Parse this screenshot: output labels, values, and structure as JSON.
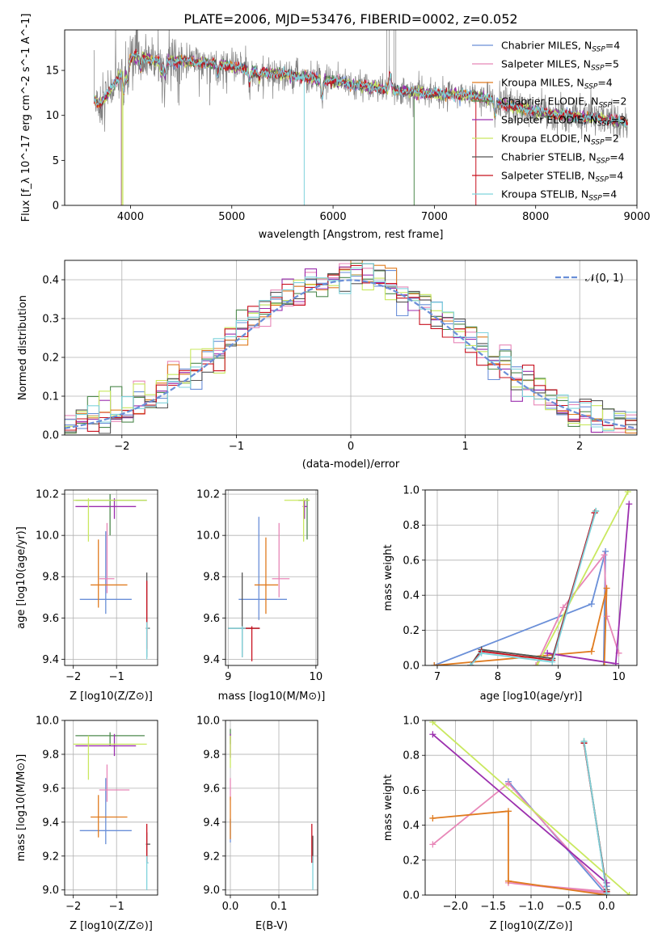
{
  "figure": {
    "title": "PLATE=2006, MJD=53476, FIBERID=0002, z=0.052"
  },
  "series": [
    {
      "name": "Chabrier MILES",
      "nssp": "4",
      "color": "#6a8fd8"
    },
    {
      "name": "Salpeter MILES",
      "nssp": "5",
      "color": "#e887b8"
    },
    {
      "name": "Kroupa MILES",
      "nssp": "4",
      "color": "#e07b1f"
    },
    {
      "name": "Chabrier ELODIE",
      "nssp": "2",
      "color": "#4f8a4f"
    },
    {
      "name": "Salpeter ELODIE",
      "nssp": "3",
      "color": "#9b2fae"
    },
    {
      "name": "Kroupa ELODIE",
      "nssp": "2",
      "color": "#c9e85f"
    },
    {
      "name": "Chabrier STELIB",
      "nssp": "4",
      "color": "#555555"
    },
    {
      "name": "Salpeter STELIB",
      "nssp": "4",
      "color": "#c8101e"
    },
    {
      "name": "Kroupa STELIB",
      "nssp": "4",
      "color": "#7fd3dc"
    }
  ],
  "chart_data": [
    {
      "type": "line",
      "id": "spectrum",
      "title": "PLATE=2006, MJD=53476, FIBERID=0002, z=0.052",
      "xlabel": "wavelength [Angstrom, rest frame]",
      "ylabel": "Flux [f_λ 10^-17 erg cm^-2 s^-1 A^-1]",
      "xlim": [
        3350,
        9000
      ],
      "ylim": [
        0,
        19.5
      ],
      "xticks": [
        4000,
        5000,
        6000,
        7000,
        8000,
        9000
      ],
      "yticks": [
        0,
        5,
        10,
        15
      ],
      "data_color": "#808080",
      "continuum": [
        [
          3640,
          11.8
        ],
        [
          3700,
          11.2
        ],
        [
          3800,
          12.8
        ],
        [
          3900,
          14.5
        ],
        [
          4000,
          16.3
        ],
        [
          4100,
          16.8
        ],
        [
          4200,
          16.2
        ],
        [
          4300,
          16.0
        ],
        [
          4400,
          16.0
        ],
        [
          4500,
          16.0
        ],
        [
          4700,
          15.9
        ],
        [
          5000,
          15.5
        ],
        [
          5200,
          14.9
        ],
        [
          5500,
          14.6
        ],
        [
          5800,
          14.1
        ],
        [
          6000,
          13.8
        ],
        [
          6300,
          13.2
        ],
        [
          6600,
          12.8
        ],
        [
          6800,
          12.6
        ],
        [
          7000,
          12.4
        ],
        [
          7200,
          12.3
        ],
        [
          7400,
          12.2
        ],
        [
          7600,
          11.6
        ],
        [
          7800,
          10.9
        ],
        [
          8000,
          10.5
        ],
        [
          8200,
          10.1
        ],
        [
          8400,
          9.9
        ],
        [
          8600,
          9.7
        ],
        [
          8800,
          9.4
        ],
        [
          8910,
          9.2
        ]
      ],
      "legend_loc": "upper right",
      "grid": false
    },
    {
      "type": "line",
      "id": "residuals",
      "xlabel": "(data-model)/error",
      "ylabel": "Normed distribution",
      "xlim": [
        -2.5,
        2.5
      ],
      "ylim": [
        0,
        0.45
      ],
      "xticks": [
        -2,
        -1,
        0,
        1,
        2
      ],
      "yticks": [
        0.0,
        0.1,
        0.2,
        0.3,
        0.4
      ],
      "normal_curve_label": "𝒩(0, 1)",
      "normal_curve_color": "#6a8fd8",
      "bin_width": 0.1,
      "grid": true
    },
    {
      "type": "scatter",
      "id": "age_vs_Z",
      "xlabel": "Z [log10(Z/Z⊙)]",
      "ylabel": "age [log10(age/yr)]",
      "xlim": [
        -2.2,
        -0.05
      ],
      "ylim": [
        9.37,
        10.22
      ],
      "xticks": [
        -2,
        -1
      ],
      "yticks": [
        9.4,
        9.6,
        9.8,
        10.0,
        10.2
      ],
      "points": [
        {
          "x": -1.25,
          "y": 9.69,
          "xlo": -1.85,
          "xhi": -0.65,
          "ylo": 9.62,
          "yhi": 10.02
        },
        {
          "x": -1.22,
          "y": 9.79,
          "xlo": -1.4,
          "xhi": -1.05,
          "ylo": 9.72,
          "yhi": 10.06
        },
        {
          "x": -1.42,
          "y": 9.76,
          "xlo": -1.6,
          "xhi": -0.75,
          "ylo": 9.65,
          "yhi": 9.98
        },
        {
          "x": -1.15,
          "y": 10.17,
          "xlo": -1.95,
          "xhi": -0.3,
          "ylo": 10.0,
          "yhi": 10.2
        },
        {
          "x": -1.05,
          "y": 10.14,
          "xlo": -1.95,
          "xhi": -0.55,
          "ylo": 10.08,
          "yhi": 10.18
        },
        {
          "x": -1.65,
          "y": 10.17,
          "xlo": -2.0,
          "xhi": -0.3,
          "ylo": 9.97,
          "yhi": 10.18
        },
        {
          "x": -0.3,
          "y": 9.55,
          "xlo": -0.32,
          "xhi": -0.23,
          "ylo": 9.41,
          "yhi": 9.82
        },
        {
          "x": -0.3,
          "y": 9.55,
          "xlo": -0.3,
          "xhi": -0.3,
          "ylo": 9.45,
          "yhi": 9.78
        },
        {
          "x": -0.3,
          "y": 9.55,
          "xlo": -0.31,
          "xhi": -0.26,
          "ylo": 9.4,
          "yhi": 9.58
        }
      ],
      "grid": true
    },
    {
      "type": "scatter",
      "id": "age_vs_mass",
      "xlabel": "mass [log10(M/M⊙)]",
      "ylabel": "",
      "xlim": [
        8.97,
        10.02
      ],
      "ylim": [
        9.37,
        10.22
      ],
      "xticks": [
        9,
        10
      ],
      "yticks": [
        9.4,
        9.6,
        9.8,
        10.0,
        10.2
      ],
      "points": [
        {
          "x": 9.35,
          "y": 9.69,
          "xlo": 9.12,
          "xhi": 9.67,
          "ylo": 9.59,
          "yhi": 10.09
        },
        {
          "x": 9.58,
          "y": 9.79,
          "xlo": 9.5,
          "xhi": 9.7,
          "ylo": 9.7,
          "yhi": 10.06
        },
        {
          "x": 9.43,
          "y": 9.76,
          "xlo": 9.3,
          "xhi": 9.57,
          "ylo": 9.62,
          "yhi": 9.99
        },
        {
          "x": 9.9,
          "y": 10.17,
          "xlo": 9.8,
          "xhi": 9.92,
          "ylo": 9.98,
          "yhi": 10.18
        },
        {
          "x": 9.87,
          "y": 10.14,
          "xlo": 9.85,
          "xhi": 9.9,
          "ylo": 10.08,
          "yhi": 10.17
        },
        {
          "x": 9.86,
          "y": 10.17,
          "xlo": 9.64,
          "xhi": 9.93,
          "ylo": 9.97,
          "yhi": 10.18
        },
        {
          "x": 9.16,
          "y": 9.55,
          "xlo": 9.0,
          "xhi": 9.36,
          "ylo": 9.41,
          "yhi": 9.82
        },
        {
          "x": 9.27,
          "y": 9.55,
          "xlo": 9.15,
          "xhi": 9.36,
          "ylo": 9.39,
          "yhi": 9.56
        },
        {
          "x": 9.16,
          "y": 9.55,
          "xlo": 9.0,
          "xhi": 9.2,
          "ylo": 9.41,
          "yhi": 9.56
        }
      ],
      "grid": true
    },
    {
      "type": "line",
      "id": "weight_vs_age",
      "xlabel": "age [log10(age/yr)]",
      "ylabel": "mass weight",
      "xlim": [
        6.8,
        10.3
      ],
      "ylim": [
        0,
        1.0
      ],
      "xticks": [
        7,
        8,
        9,
        10
      ],
      "yticks": [
        0.0,
        0.2,
        0.4,
        0.6,
        0.8,
        1.0
      ],
      "lines": [
        [
          [
            6.95,
            0.0
          ],
          [
            9.55,
            0.35
          ],
          [
            9.78,
            0.65
          ],
          [
            9.75,
            0.0
          ]
        ],
        [
          [
            8.63,
            0.0
          ],
          [
            9.08,
            0.33
          ],
          [
            9.76,
            0.63
          ],
          [
            9.8,
            0.28
          ],
          [
            10.0,
            0.07
          ]
        ],
        [
          [
            6.95,
            0.0
          ],
          [
            9.55,
            0.08
          ],
          [
            9.8,
            0.44
          ],
          [
            9.76,
            0.0
          ]
        ],
        [
          [
            7.55,
            0.0
          ],
          [
            7.73,
            0.09
          ],
          [
            8.9,
            0.04
          ],
          [
            9.62,
            0.88
          ]
        ],
        [
          [
            8.82,
            0.07
          ],
          [
            9.95,
            0.01
          ],
          [
            10.17,
            0.92
          ]
        ],
        [
          [
            8.65,
            0.0
          ],
          [
            10.15,
            0.99
          ]
        ],
        [
          [
            7.55,
            0.0
          ],
          [
            7.73,
            0.09
          ],
          [
            8.9,
            0.04
          ],
          [
            9.6,
            0.87
          ]
        ],
        [
          [
            7.55,
            0.0
          ],
          [
            7.73,
            0.08
          ],
          [
            8.9,
            0.03
          ],
          [
            9.6,
            0.87
          ]
        ],
        [
          [
            7.55,
            0.0
          ],
          [
            7.73,
            0.07
          ],
          [
            8.9,
            0.02
          ],
          [
            9.62,
            0.88
          ]
        ]
      ],
      "grid": true
    },
    {
      "type": "scatter",
      "id": "mass_vs_Z",
      "xlabel": "Z [log10(Z/Z⊙)]",
      "ylabel": "mass [log10(M/M⊙)]",
      "xlim": [
        -2.2,
        -0.05
      ],
      "ylim": [
        8.97,
        10.0
      ],
      "xticks": [
        -2,
        -1
      ],
      "yticks": [
        9.0,
        9.2,
        9.4,
        9.6,
        9.8,
        10.0
      ],
      "points": [
        {
          "x": -1.25,
          "y": 9.35,
          "xlo": -1.85,
          "xhi": -0.65,
          "ylo": 9.27,
          "yhi": 9.66
        },
        {
          "x": -1.22,
          "y": 9.59,
          "xlo": -1.4,
          "xhi": -0.7,
          "ylo": 9.52,
          "yhi": 9.74
        },
        {
          "x": -1.42,
          "y": 9.43,
          "xlo": -1.6,
          "xhi": -0.75,
          "ylo": 9.31,
          "yhi": 9.56
        },
        {
          "x": -1.15,
          "y": 9.91,
          "xlo": -1.95,
          "xhi": -0.35,
          "ylo": 9.85,
          "yhi": 9.93
        },
        {
          "x": -1.05,
          "y": 9.85,
          "xlo": -1.95,
          "xhi": -0.55,
          "ylo": 9.79,
          "yhi": 9.92
        },
        {
          "x": -1.65,
          "y": 9.86,
          "xlo": -2.0,
          "xhi": -0.3,
          "ylo": 9.65,
          "yhi": 9.91
        },
        {
          "x": -0.3,
          "y": 9.27,
          "xlo": -0.32,
          "xhi": -0.22,
          "ylo": 9.16,
          "yhi": 9.34
        },
        {
          "x": -0.3,
          "y": 9.27,
          "xlo": -0.3,
          "xhi": -0.3,
          "ylo": 9.16,
          "yhi": 9.39
        },
        {
          "x": -0.3,
          "y": 9.16,
          "xlo": -0.31,
          "xhi": -0.26,
          "ylo": 9.0,
          "yhi": 9.2
        }
      ],
      "grid": true
    },
    {
      "type": "scatter",
      "id": "mass_vs_ebv",
      "xlabel": "E(B-V)",
      "ylabel": "",
      "xlim": [
        -0.01,
        0.18
      ],
      "ylim": [
        8.97,
        10.0
      ],
      "xticks": [
        0.0,
        0.1
      ],
      "yticks": [
        9.0,
        9.2,
        9.4,
        9.6,
        9.8,
        10.0
      ],
      "points": [
        {
          "x": 0.0,
          "y": 9.35,
          "xlo": 0.0,
          "xhi": 0.0,
          "ylo": 9.28,
          "yhi": 9.42
        },
        {
          "x": 0.0,
          "y": 9.59,
          "xlo": 0.0,
          "xhi": 0.0,
          "ylo": 9.53,
          "yhi": 9.66
        },
        {
          "x": 0.0,
          "y": 9.43,
          "xlo": 0.0,
          "xhi": 0.0,
          "ylo": 9.3,
          "yhi": 9.55
        },
        {
          "x": 0.0,
          "y": 9.91,
          "xlo": 0.0,
          "xhi": 0.0,
          "ylo": 9.86,
          "yhi": 9.95
        },
        {
          "x": 0.0,
          "y": 9.85,
          "xlo": 0.0,
          "xhi": 0.0,
          "ylo": 9.78,
          "yhi": 9.92
        },
        {
          "x": 0.0,
          "y": 9.86,
          "xlo": 0.0,
          "xhi": 0.0,
          "ylo": 9.72,
          "yhi": 9.91
        },
        {
          "x": 0.17,
          "y": 9.27,
          "xlo": 0.17,
          "xhi": 0.17,
          "ylo": 9.16,
          "yhi": 9.32
        },
        {
          "x": 0.168,
          "y": 9.27,
          "xlo": 0.168,
          "xhi": 0.168,
          "ylo": 9.16,
          "yhi": 9.39
        },
        {
          "x": 0.17,
          "y": 9.16,
          "xlo": 0.17,
          "xhi": 0.17,
          "ylo": 9.0,
          "yhi": 9.2
        }
      ],
      "grid": true
    },
    {
      "type": "line",
      "id": "weight_vs_Z",
      "xlabel": "Z [log10(Z/Z⊙)]",
      "ylabel": "mass weight",
      "xlim": [
        -2.4,
        0.4
      ],
      "ylim": [
        0,
        1.0
      ],
      "xticks": [
        -2.0,
        -1.5,
        -1.0,
        -0.5,
        0.0
      ],
      "yticks": [
        0.0,
        0.2,
        0.4,
        0.6,
        0.8,
        1.0
      ],
      "lines": [
        [
          [
            -1.3,
            0.65
          ],
          [
            0.0,
            0.0
          ],
          [
            0.0,
            0.05
          ]
        ],
        [
          [
            -2.3,
            0.29
          ],
          [
            -1.3,
            0.64
          ],
          [
            0.0,
            0.02
          ],
          [
            -1.3,
            0.07
          ],
          [
            0.0,
            0.01
          ]
        ],
        [
          [
            -2.3,
            0.44
          ],
          [
            -1.3,
            0.48
          ],
          [
            -1.3,
            0.08
          ],
          [
            0.0,
            0.0
          ]
        ],
        [
          [
            -0.3,
            0.88
          ],
          [
            0.0,
            0.02
          ]
        ],
        [
          [
            -2.3,
            0.92
          ],
          [
            0.0,
            0.07
          ]
        ],
        [
          [
            -2.3,
            0.99
          ],
          [
            0.3,
            0.0
          ]
        ],
        [
          [
            -0.3,
            0.87
          ],
          [
            0.0,
            0.03
          ]
        ],
        [
          [
            -0.3,
            0.87
          ],
          [
            0.0,
            0.02
          ]
        ],
        [
          [
            -0.3,
            0.88
          ],
          [
            0.0,
            0.01
          ]
        ]
      ],
      "grid": true
    }
  ]
}
